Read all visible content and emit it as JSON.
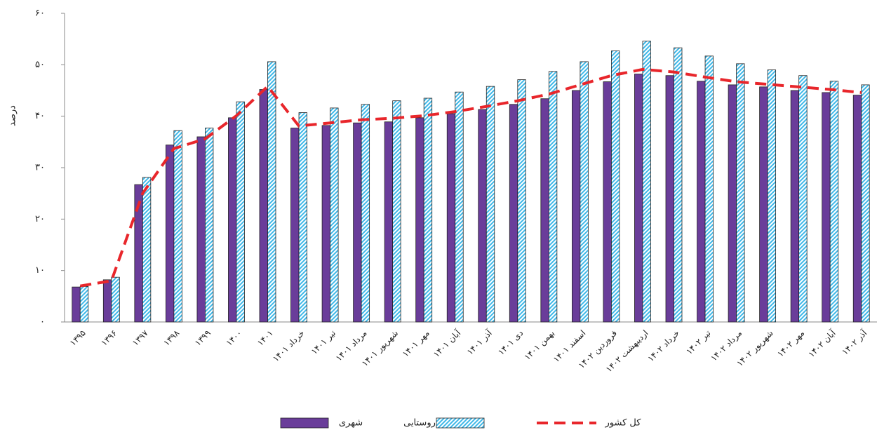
{
  "chart_data": {
    "type": "bar",
    "y_label": "درصد",
    "categories": [
      "۱۳۹۵",
      "۱۳۹۶",
      "۱۳۹۷",
      "۱۳۹۸",
      "۱۳۹۹",
      "۱۴۰۰",
      "۱۴۰۱",
      "خرداد ۱۴۰۱",
      "تیر ۱۴۰۱",
      "مرداد ۱۴۰۱",
      "شهریور ۱۴۰۱",
      "مهر ۱۴۰۱",
      "آبان ۱۴۰۱",
      "آذر ۱۴۰۱",
      "دی ۱۴۰۱",
      "بهمن ۱۴۰۱",
      "اسفند ۱۴۰۱",
      "فروردین ۱۴۰۲",
      "اردیبهشت ۱۴۰۲",
      "خرداد ۱۴۰۲",
      "تیر ۱۴۰۲",
      "مرداد ۱۴۰۲",
      "شهریور ۱۴۰۲",
      "مهر ۱۴۰۲",
      "آبان ۱۴۰۲",
      "آذر ۱۴۰۲"
    ],
    "series": [
      {
        "name": "شهری",
        "type": "bar",
        "color": "#6a3d9a",
        "values": [
          6.8,
          8.2,
          26.7,
          34.4,
          36.0,
          39.7,
          45.2,
          37.7,
          38.2,
          38.7,
          38.9,
          39.7,
          40.5,
          41.3,
          42.3,
          43.4,
          45.0,
          46.7,
          48.2,
          47.9,
          46.8,
          46.1,
          45.7,
          45.0,
          44.6,
          44.1
        ]
      },
      {
        "name": "روستایی",
        "type": "bar",
        "color": "#3fb8e8",
        "values": [
          6.9,
          8.7,
          28.1,
          37.2,
          37.7,
          42.8,
          50.6,
          40.7,
          41.6,
          42.3,
          43.0,
          43.5,
          44.7,
          45.8,
          47.1,
          48.7,
          50.6,
          52.7,
          54.6,
          53.3,
          51.7,
          50.2,
          49.0,
          47.9,
          46.8,
          46.1
        ]
      },
      {
        "name": "کل کشور",
        "type": "line",
        "color": "#e8262b",
        "values": [
          7.0,
          8.0,
          25.0,
          33.7,
          35.6,
          40.1,
          45.8,
          38.1,
          38.7,
          39.3,
          39.6,
          40.1,
          40.9,
          41.9,
          43.0,
          44.3,
          46.1,
          47.9,
          49.1,
          48.6,
          47.6,
          46.7,
          46.2,
          45.7,
          45.2,
          44.6
        ]
      }
    ],
    "ylim": [
      0,
      60
    ],
    "yticks": [
      {
        "value": 0,
        "label": "۰"
      },
      {
        "value": 10,
        "label": "۱۰"
      },
      {
        "value": 20,
        "label": "۲۰"
      },
      {
        "value": 30,
        "label": "۳۰"
      },
      {
        "value": 40,
        "label": "۴۰"
      },
      {
        "value": 50,
        "label": "۵۰"
      },
      {
        "value": 60,
        "label": "۶۰"
      }
    ],
    "grid": false
  }
}
